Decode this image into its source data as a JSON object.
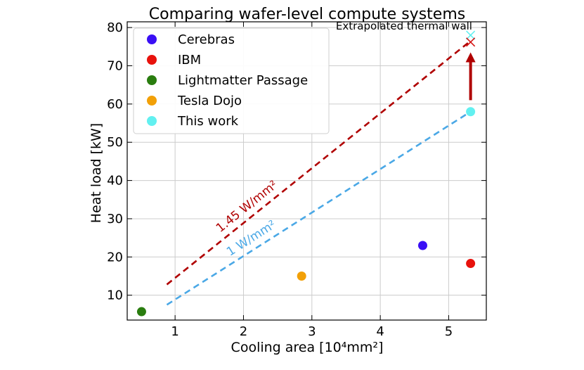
{
  "chart_data": {
    "type": "scatter",
    "title": "Comparing wafer-level compute systems",
    "xlabel": "Cooling area [10⁴mm²]",
    "ylabel": "Heat load [kW]",
    "xlim": [
      0.3,
      5.55
    ],
    "ylim": [
      3.5,
      81.5
    ],
    "x_ticks": [
      1,
      2,
      3,
      4,
      5
    ],
    "y_ticks": [
      10,
      20,
      30,
      40,
      50,
      60,
      70,
      80
    ],
    "grid": true,
    "legend_position": "top-left",
    "series": [
      {
        "name": "Cerebras",
        "color": "#3a0ff5",
        "x": [
          4.62
        ],
        "y": [
          23.0
        ]
      },
      {
        "name": "IBM",
        "color": "#e8120c",
        "x": [
          5.32
        ],
        "y": [
          18.3
        ]
      },
      {
        "name": "Lightmatter Passage",
        "color": "#2a7d0f",
        "x": [
          0.51
        ],
        "y": [
          5.7
        ]
      },
      {
        "name": "Tesla Dojo",
        "color": "#f2a007",
        "x": [
          2.85
        ],
        "y": [
          15.0
        ]
      },
      {
        "name": "This work",
        "color": "#62f0f0",
        "x": [
          5.32
        ],
        "y": [
          58.0
        ]
      }
    ],
    "reference_lines": [
      {
        "label": "1.45 W/mm²",
        "color": "#b00000",
        "x": [
          0.88,
          5.32
        ],
        "y": [
          12.8,
          76.5
        ]
      },
      {
        "label": "1 W/mm²",
        "color": "#4aa8e6",
        "x": [
          0.88,
          5.32
        ],
        "y": [
          7.5,
          58.0
        ]
      }
    ],
    "markers_x": [
      {
        "color": "#62f0f0",
        "x": 5.32,
        "y": 78.0
      },
      {
        "color": "#d41414",
        "x": 5.32,
        "y": 76.2
      }
    ],
    "arrow": {
      "color": "#b00000",
      "x": 5.32,
      "y_from": 61.0,
      "y_to": 73.5
    },
    "annotation": {
      "text": "Extrapolated thermal wall",
      "x": 3.35,
      "y": 79.5
    }
  }
}
